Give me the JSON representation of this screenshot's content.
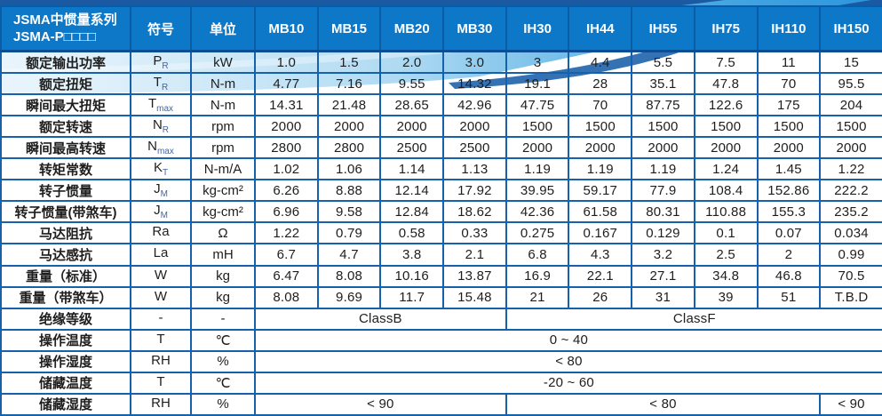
{
  "table": {
    "title_line1": "JSMA中惯量系列",
    "title_line2": "JSMA-P□□□□",
    "header": {
      "symbol": "符号",
      "unit": "单位"
    },
    "columns": [
      "MB10",
      "MB15",
      "MB20",
      "MB30",
      "IH30",
      "IH44",
      "IH55",
      "IH75",
      "IH110",
      "IH150"
    ],
    "rows": [
      {
        "label": "额定输出功率",
        "sym": "P",
        "sub": "R",
        "unit": "kW",
        "cells": [
          "1.0",
          "1.5",
          "2.0",
          "3.0",
          "3",
          "4.4",
          "5.5",
          "7.5",
          "11",
          "15"
        ]
      },
      {
        "label": "额定扭矩",
        "sym": "T",
        "sub": "R",
        "unit": "N-m",
        "cells": [
          "4.77",
          "7.16",
          "9.55",
          "14.32",
          "19.1",
          "28",
          "35.1",
          "47.8",
          "70",
          "95.5"
        ]
      },
      {
        "label": "瞬间最大扭矩",
        "sym": "T",
        "sub": "max",
        "unit": "N-m",
        "cells": [
          "14.31",
          "21.48",
          "28.65",
          "42.96",
          "47.75",
          "70",
          "87.75",
          "122.6",
          "175",
          "204"
        ]
      },
      {
        "label": "额定转速",
        "sym": "N",
        "sub": "R",
        "unit": "rpm",
        "cells": [
          "2000",
          "2000",
          "2000",
          "2000",
          "1500",
          "1500",
          "1500",
          "1500",
          "1500",
          "1500"
        ]
      },
      {
        "label": "瞬间最高转速",
        "sym": "N",
        "sub": "max",
        "unit": "rpm",
        "cells": [
          "2800",
          "2800",
          "2500",
          "2500",
          "2000",
          "2000",
          "2000",
          "2000",
          "2000",
          "2000"
        ]
      },
      {
        "label": "转矩常数",
        "sym": "K",
        "sub": "T",
        "unit": "N-m/A",
        "cells": [
          "1.02",
          "1.06",
          "1.14",
          "1.13",
          "1.19",
          "1.19",
          "1.19",
          "1.24",
          "1.45",
          "1.22"
        ]
      },
      {
        "label": "转子惯量",
        "sym": "J",
        "sub": "M",
        "unit": "kg-cm²",
        "cells": [
          "6.26",
          "8.88",
          "12.14",
          "17.92",
          "39.95",
          "59.17",
          "77.9",
          "108.4",
          "152.86",
          "222.2"
        ]
      },
      {
        "label": "转子惯量(带煞车)",
        "sym": "J",
        "sub": "M",
        "unit": "kg-cm²",
        "cells": [
          "6.96",
          "9.58",
          "12.84",
          "18.62",
          "42.36",
          "61.58",
          "80.31",
          "110.88",
          "155.3",
          "235.2"
        ]
      },
      {
        "label": "马达阻抗",
        "sym": "Ra",
        "sub": "",
        "unit": "Ω",
        "cells": [
          "1.22",
          "0.79",
          "0.58",
          "0.33",
          "0.275",
          "0.167",
          "0.129",
          "0.1",
          "0.07",
          "0.034"
        ]
      },
      {
        "label": "马达感抗",
        "sym": "La",
        "sub": "",
        "unit": "mH",
        "cells": [
          "6.7",
          "4.7",
          "3.8",
          "2.1",
          "6.8",
          "4.3",
          "3.2",
          "2.5",
          "2",
          "0.99"
        ]
      },
      {
        "label": "重量（标准）",
        "sym": "W",
        "sub": "",
        "unit": "kg",
        "cells": [
          "6.47",
          "8.08",
          "10.16",
          "13.87",
          "16.9",
          "22.1",
          "27.1",
          "34.8",
          "46.8",
          "70.5"
        ]
      },
      {
        "label": "重量（带煞车）",
        "sym": "W",
        "sub": "",
        "unit": "kg",
        "cells": [
          "8.08",
          "9.69",
          "11.7",
          "15.48",
          "21",
          "26",
          "31",
          "39",
          "51",
          "T.B.D"
        ]
      },
      {
        "label": "绝缘等级",
        "sym": "-",
        "sub": "",
        "unit": "-",
        "cells": [
          {
            "t": "ClassB",
            "span": 4
          },
          {
            "t": "ClassF",
            "span": 6
          }
        ]
      },
      {
        "label": "操作温度",
        "sym": "T",
        "sub": "",
        "unit": "℃",
        "cells": [
          {
            "t": "0 ~ 40",
            "span": 10
          }
        ]
      },
      {
        "label": "操作湿度",
        "sym": "RH",
        "sub": "",
        "unit": "%",
        "cells": [
          {
            "t": "< 80",
            "span": 10
          }
        ]
      },
      {
        "label": "储藏温度",
        "sym": "T",
        "sub": "",
        "unit": "℃",
        "cells": [
          {
            "t": "-20 ~ 60",
            "span": 10
          }
        ]
      },
      {
        "label": "储藏湿度",
        "sym": "RH",
        "sub": "",
        "unit": "%",
        "cells": [
          {
            "t": "< 90",
            "span": 4
          },
          {
            "t": "< 80",
            "span": 5
          },
          {
            "t": "< 90",
            "span": 1
          }
        ]
      }
    ]
  },
  "colors": {
    "header_bg": "#0E78C8",
    "header_text": "#FFFFFF",
    "border": "#1661AB",
    "body_text": "#1E1E1E"
  }
}
